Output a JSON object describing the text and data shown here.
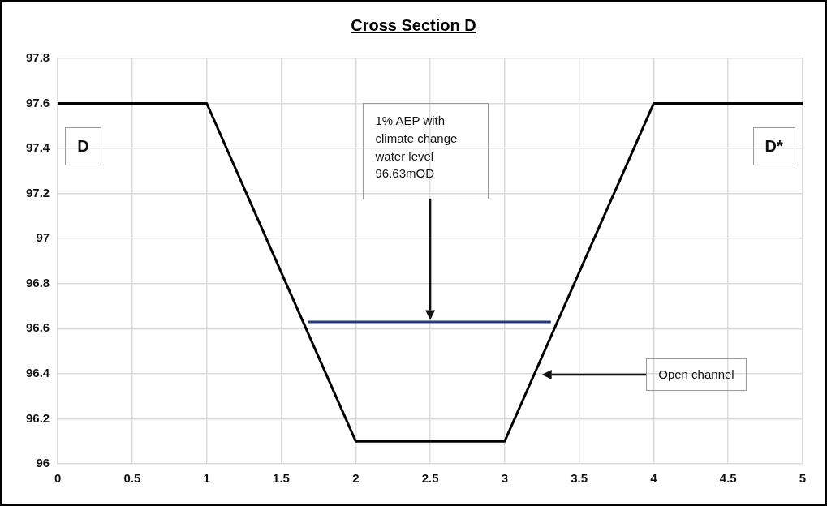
{
  "chart_data": {
    "type": "line",
    "title": "Cross Section D",
    "series": [
      {
        "type": "line",
        "color": "#000000",
        "x": [
          0,
          1,
          2,
          3,
          4,
          5
        ],
        "values": [
          97.6,
          97.6,
          96.1,
          96.1,
          97.6,
          97.6
        ]
      },
      {
        "type": "line",
        "color": "#1f3c88",
        "x": [
          1.68,
          3.31
        ],
        "values": [
          96.63,
          96.63
        ]
      }
    ],
    "xlim": [
      0,
      5
    ],
    "xticks": [
      0,
      0.5,
      1,
      1.5,
      2,
      2.5,
      3,
      3.5,
      4,
      4.5,
      5
    ],
    "ylim": [
      96,
      97.8
    ],
    "yticks": [
      96,
      96.2,
      96.4,
      96.6,
      96.8,
      97,
      97.2,
      97.4,
      97.6,
      97.8
    ],
    "grid": true,
    "legend": false,
    "marker": "none",
    "line_style": "solid",
    "annotations": [
      "D",
      "D*",
      "1% AEP with climate change water level 96.63mOD",
      "Open channel"
    ]
  }
}
